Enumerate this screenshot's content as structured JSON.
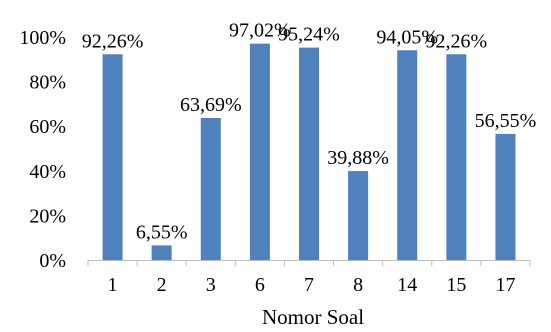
{
  "chart_data": {
    "type": "bar",
    "categories": [
      "1",
      "2",
      "3",
      "6",
      "7",
      "8",
      "14",
      "15",
      "17"
    ],
    "values": [
      92.26,
      6.55,
      63.69,
      97.02,
      95.24,
      39.88,
      94.05,
      92.26,
      56.55
    ],
    "data_labels": [
      "92,26%",
      "6,55%",
      "63,69%",
      "97,02%",
      "95,24%",
      "39,88%",
      "94,05%",
      "92,26%",
      "56,55%"
    ],
    "title": "",
    "xlabel": "Nomor Soal",
    "ylabel": "",
    "ylim": [
      0,
      100
    ],
    "yticks": [
      0,
      20,
      40,
      60,
      80,
      100
    ],
    "ytick_labels": [
      "0%",
      "20%",
      "40%",
      "60%",
      "80%",
      "100%"
    ],
    "grid": false,
    "legend": "none",
    "colors": {
      "bar": "#4f81bd",
      "axis": "#bfbfbf",
      "text": "#000000"
    }
  }
}
